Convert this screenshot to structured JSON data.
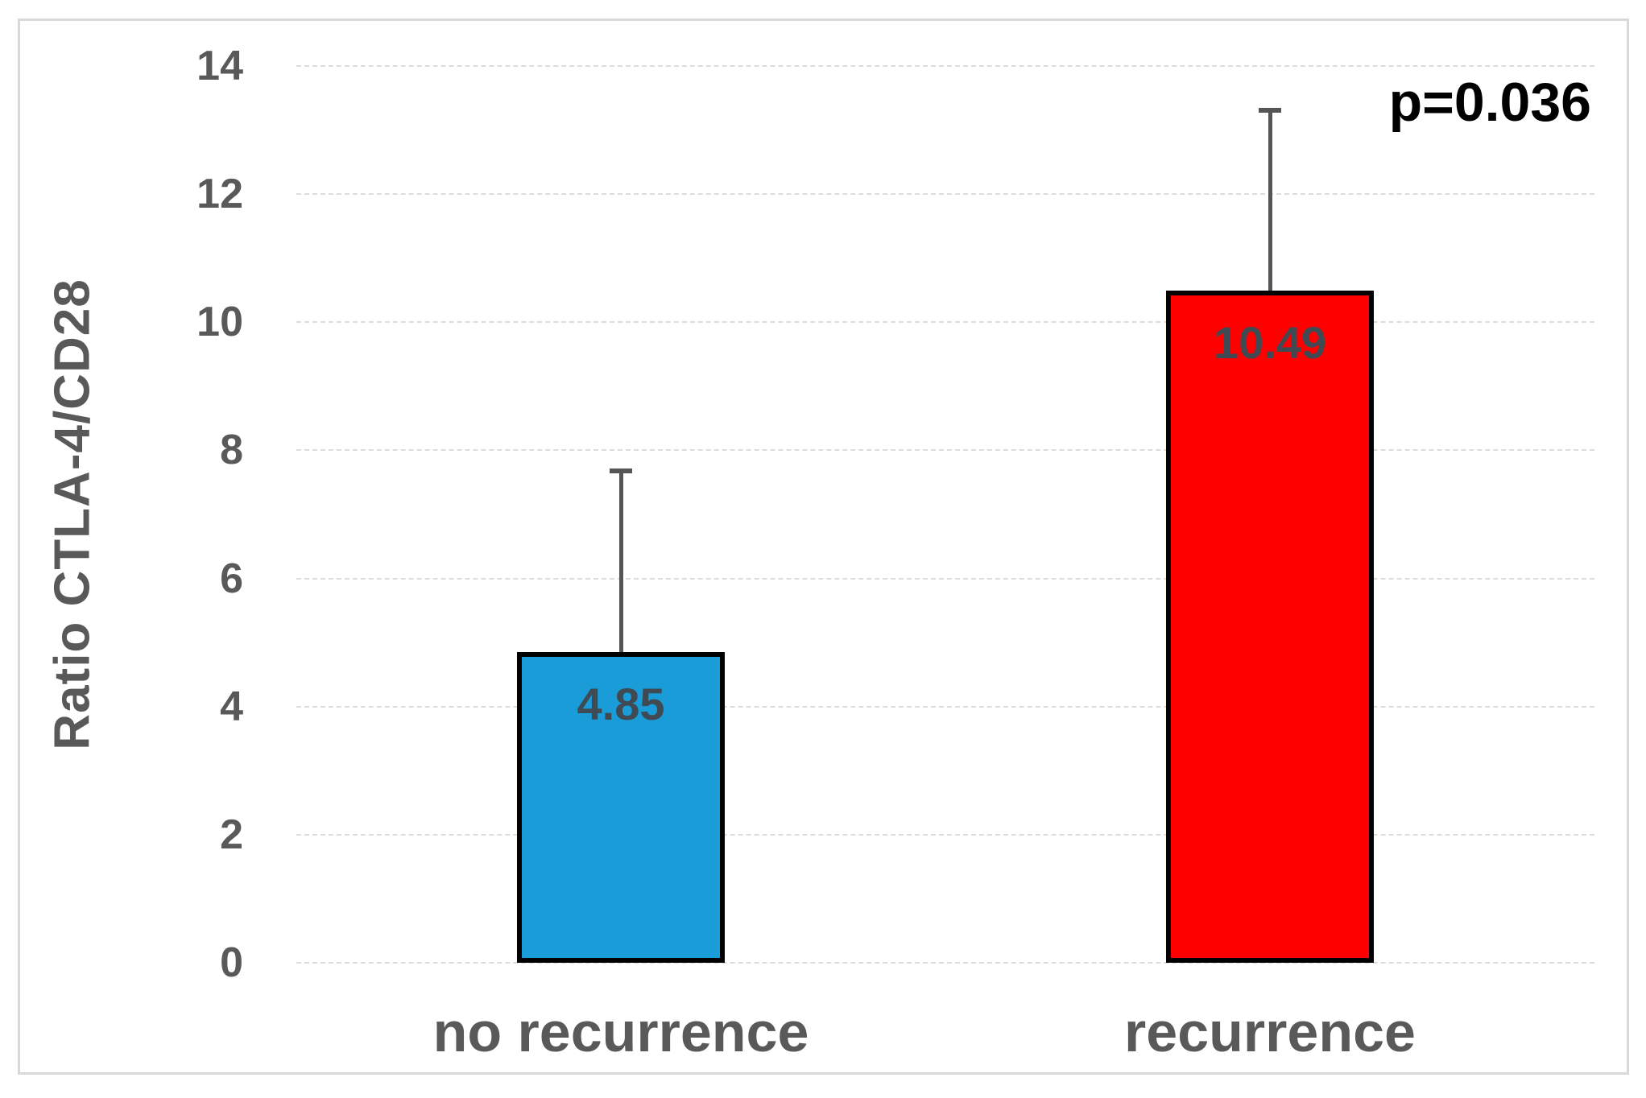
{
  "chart_data": {
    "type": "bar",
    "title": "",
    "categories": [
      "no recurrence",
      "recurrence"
    ],
    "values": [
      4.85,
      10.49
    ],
    "value_labels": [
      "4.85",
      "10.49"
    ],
    "bar_colors": [
      "#199CD8",
      "#FF0000"
    ],
    "error_upper": [
      2.83,
      2.82
    ],
    "error_bar_tops": [
      7.68,
      13.31
    ],
    "xlabel": "",
    "ylabel": "Ratio CTLA-4/CD28",
    "ylim": [
      0,
      14
    ],
    "yticks": [
      "0",
      "2",
      "4",
      "6",
      "8",
      "10",
      "12",
      "14"
    ],
    "annotation": "p=0.036",
    "grid": "horizontal-light",
    "legend_position": "none"
  },
  "colors": {
    "bar_blue": "#199CD8",
    "bar_red": "#FF0000",
    "bar_border": "#000000",
    "axis_text": "#595959",
    "value_label_text": "#3F4A52",
    "gridline": "#D9D9D9",
    "frame_border": "#D9D9D9",
    "error_bar": "#555555",
    "annotation_text": "#000000",
    "background": "#FFFFFF"
  }
}
